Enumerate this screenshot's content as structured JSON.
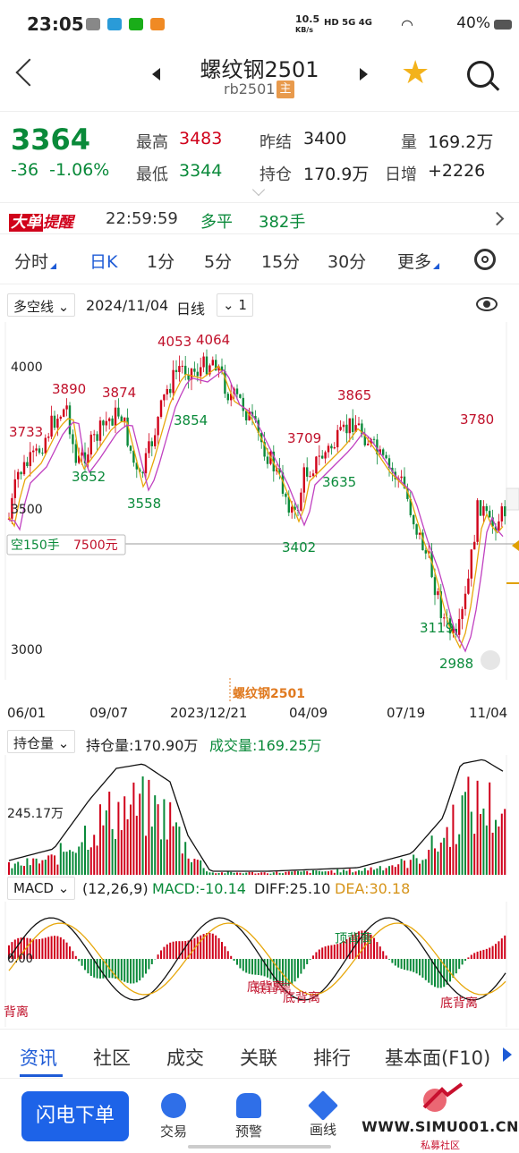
{
  "status_bar": {
    "time": "23:05",
    "net_speed": "10.5",
    "net_unit": "KB/s",
    "signal_labels": "HD 5G 4G",
    "battery": "40%"
  },
  "header": {
    "title": "螺纹钢2501",
    "code": "rb2501",
    "main_badge": "主"
  },
  "quote": {
    "price": "3364",
    "change": "-36",
    "change_pct": "-1.06%",
    "high_label": "最高",
    "high": "3483",
    "low_label": "最低",
    "low": "3344",
    "prev_settle_label": "昨结",
    "prev_settle": "3400",
    "open_interest_label": "持仓",
    "open_interest": "170.9万",
    "volume_label": "量",
    "volume": "169.2万",
    "daily_incr_label": "日增",
    "daily_incr": "+2226"
  },
  "alert": {
    "logo_a": "大单",
    "logo_b": "提醒",
    "time": "22:59:59",
    "type": "多平",
    "qty": "382手"
  },
  "period_tabs": [
    "分时",
    "日K",
    "1分",
    "5分",
    "15分",
    "30分",
    "更多"
  ],
  "indicator_row": {
    "indicator": "多空线",
    "date": "2024/11/04",
    "period": "日线",
    "multiplier": "1"
  },
  "kline": {
    "price_ticks": [
      "4000",
      "3500",
      "3000"
    ],
    "annotations_high": [
      "3733",
      "3890",
      "3874",
      "4053",
      "4064",
      "3709",
      "3865",
      "3780"
    ],
    "annotations_low": [
      "3652",
      "3558",
      "3854",
      "3402",
      "3635",
      "3119",
      "2988"
    ],
    "position_label": "空150手",
    "position_value": "7500元",
    "watermark": "螺纹钢2501",
    "x_labels": [
      "06/01",
      "09/07",
      "2023/12/21",
      "04/09",
      "07/19",
      "11/04"
    ]
  },
  "volume_panel": {
    "selector": "持仓量",
    "oi_text": "持仓量:170.90万",
    "vol_text": "成交量:169.25万",
    "axis_label": "245.17万"
  },
  "macd_panel": {
    "selector": "MACD",
    "params": "(12,26,9)",
    "macd": "MACD:-10.14",
    "diff": "DIFF:25.10",
    "dea": "DEA:30.18",
    "zero": "0.00",
    "div_top": "顶背离",
    "div_bottom1": "底背离",
    "div_bottom2": "底背离",
    "div_bottom3": "底背离",
    "div_bottom4": "底背离",
    "div_partial": "背离"
  },
  "bottom_tabs": [
    "资讯",
    "社区",
    "成交",
    "关联",
    "排行",
    "基本面(F10)"
  ],
  "bottom_nav": {
    "order_button": "闪电下单",
    "items": [
      "交易",
      "预警",
      "画线"
    ]
  },
  "watermark": {
    "url": "WWW.SIMU001.CN",
    "sub": "私募社区"
  }
}
